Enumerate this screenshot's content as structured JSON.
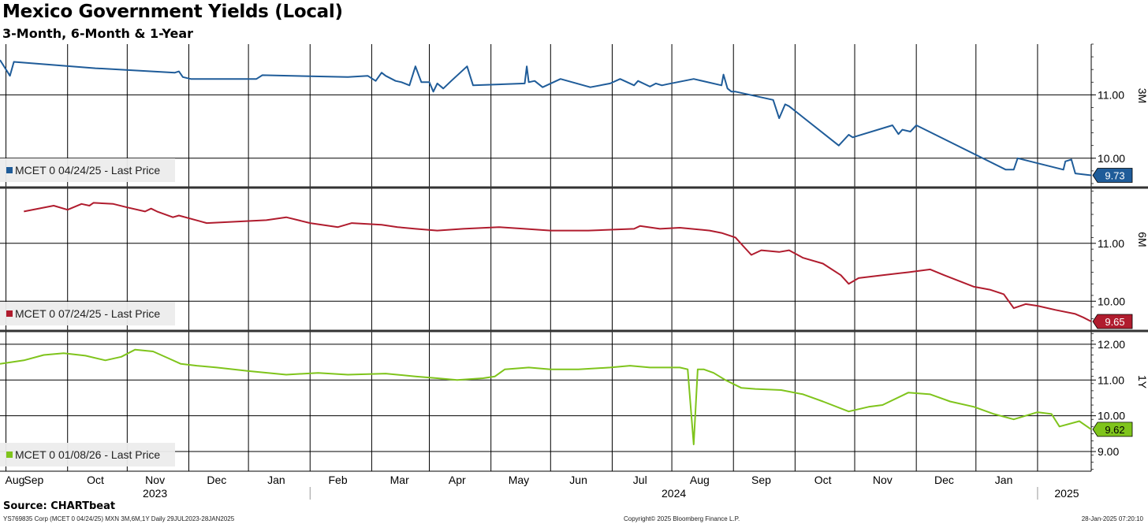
{
  "title": "Mexico Government Yields (Local)",
  "subtitle": "3-Month, 6-Month & 1-Year",
  "source": "Source: CHARTbeat",
  "footer": {
    "left": "YS769835 Corp (MCET 0 04/24/25) MXN 3M,6M,1Y  Daily 29JUL2023-28JAN2025",
    "center": "Copyright© 2025 Bloomberg Finance L.P.",
    "right": "28-Jan-2025 07:20:10"
  },
  "colors": {
    "3M": "#1f5c99",
    "6M": "#b01c2e",
    "1Y": "#7fc41c"
  },
  "chart_data": {
    "type": "line",
    "x_range": [
      "2023-07-29",
      "2025-01-28"
    ],
    "month_labels": [
      "Aug",
      "Sep",
      "Oct",
      "Nov",
      "Dec",
      "Jan",
      "Feb",
      "Mar",
      "Apr",
      "May",
      "Jun",
      "Jul",
      "Aug",
      "Sep",
      "Oct",
      "Nov",
      "Dec",
      "Jan"
    ],
    "year_labels": [
      "2023",
      "2024",
      "2025"
    ],
    "panels": [
      {
        "axis_label": "3M",
        "legend": "MCET 0 04/24/25 - Last Price",
        "last_value": "9.73",
        "ylim": [
          9.55,
          11.8
        ],
        "ticks": [
          "11.00",
          "10.00"
        ],
        "tick_values": [
          11.0,
          10.0
        ],
        "series": {
          "x": [
            "2023-07-29",
            "2023-08-01",
            "2023-08-03",
            "2023-08-05",
            "2023-09-15",
            "2023-10-25",
            "2023-10-27",
            "2023-10-29",
            "2023-11-02",
            "2023-12-05",
            "2023-12-08",
            "2024-01-20",
            "2024-01-30",
            "2024-02-03",
            "2024-02-06",
            "2024-02-08",
            "2024-02-13",
            "2024-02-16",
            "2024-02-20",
            "2024-02-23",
            "2024-02-26",
            "2024-03-01",
            "2024-03-03",
            "2024-03-05",
            "2024-03-08",
            "2024-03-12",
            "2024-03-20",
            "2024-03-23",
            "2024-04-18",
            "2024-04-19",
            "2024-04-20",
            "2024-04-23",
            "2024-04-27",
            "2024-05-06",
            "2024-05-21",
            "2024-05-31",
            "2024-06-05",
            "2024-06-12",
            "2024-06-14",
            "2024-06-20",
            "2024-06-23",
            "2024-06-26",
            "2024-06-29",
            "2024-07-12",
            "2024-07-26",
            "2024-07-27",
            "2024-07-29",
            "2024-07-31",
            "2024-08-02",
            "2024-08-21",
            "2024-08-24",
            "2024-08-27",
            "2024-08-29",
            "2024-09-23",
            "2024-09-28",
            "2024-09-30",
            "2024-10-20",
            "2024-10-23",
            "2024-10-25",
            "2024-10-29",
            "2024-11-01",
            "2024-12-16",
            "2024-12-20",
            "2024-12-22",
            "2025-01-14",
            "2025-01-15",
            "2025-01-18",
            "2025-01-20",
            "2025-01-28"
          ],
          "y": [
            11.55,
            11.4,
            11.3,
            11.52,
            11.42,
            11.35,
            11.37,
            11.28,
            11.25,
            11.25,
            11.31,
            11.28,
            11.3,
            11.22,
            11.35,
            11.3,
            11.22,
            11.2,
            11.15,
            11.45,
            11.2,
            11.2,
            11.05,
            11.18,
            11.1,
            11.22,
            11.45,
            11.15,
            11.18,
            11.45,
            11.2,
            11.22,
            11.12,
            11.25,
            11.12,
            11.18,
            11.25,
            11.15,
            11.22,
            11.13,
            11.18,
            11.15,
            11.17,
            11.25,
            11.15,
            11.32,
            11.1,
            11.05,
            11.05,
            10.92,
            10.63,
            10.85,
            10.82,
            10.2,
            10.37,
            10.33,
            10.52,
            10.38,
            10.45,
            10.42,
            10.52,
            9.82,
            9.82,
            10.0,
            9.82,
            9.95,
            9.98,
            9.76,
            9.73
          ]
        }
      },
      {
        "axis_label": "6M",
        "legend": "MCET 0 07/24/25 - Last Price",
        "last_value": "9.65",
        "ylim": [
          9.5,
          11.95
        ],
        "ticks": [
          "11.00",
          "10.00"
        ],
        "tick_values": [
          11.0,
          10.0
        ],
        "series": {
          "x": [
            "2023-08-10",
            "2023-08-25",
            "2023-09-01",
            "2023-09-08",
            "2023-09-12",
            "2023-09-14",
            "2023-09-24",
            "2023-10-01",
            "2023-10-10",
            "2023-10-13",
            "2023-10-16",
            "2023-10-24",
            "2023-10-27",
            "2023-11-10",
            "2023-12-10",
            "2023-12-20",
            "2024-01-01",
            "2024-01-15",
            "2024-01-22",
            "2024-02-06",
            "2024-02-14",
            "2024-02-23",
            "2024-03-05",
            "2024-03-18",
            "2024-04-05",
            "2024-04-18",
            "2024-05-01",
            "2024-05-20",
            "2024-06-12",
            "2024-06-15",
            "2024-06-25",
            "2024-07-05",
            "2024-07-20",
            "2024-07-26",
            "2024-08-02",
            "2024-08-06",
            "2024-08-10",
            "2024-08-15",
            "2024-08-24",
            "2024-08-29",
            "2024-09-05",
            "2024-09-15",
            "2024-09-24",
            "2024-09-28",
            "2024-10-03",
            "2024-10-15",
            "2024-10-28",
            "2024-11-08",
            "2024-11-15",
            "2024-11-30",
            "2024-12-08",
            "2024-12-15",
            "2024-12-20",
            "2024-12-26",
            "2025-01-01",
            "2025-01-10",
            "2025-01-20",
            "2025-01-24",
            "2025-01-28"
          ],
          "y": [
            11.55,
            11.65,
            11.58,
            11.68,
            11.65,
            11.7,
            11.68,
            11.62,
            11.55,
            11.6,
            11.55,
            11.45,
            11.48,
            11.35,
            11.4,
            11.45,
            11.35,
            11.28,
            11.35,
            11.32,
            11.28,
            11.25,
            11.22,
            11.25,
            11.28,
            11.25,
            11.22,
            11.22,
            11.25,
            11.3,
            11.25,
            11.27,
            11.22,
            11.18,
            11.1,
            10.95,
            10.8,
            10.88,
            10.85,
            10.88,
            10.75,
            10.65,
            10.45,
            10.3,
            10.4,
            10.45,
            10.5,
            10.55,
            10.45,
            10.25,
            10.2,
            10.12,
            9.88,
            9.95,
            9.92,
            9.85,
            9.78,
            9.72,
            9.65
          ]
        }
      },
      {
        "axis_label": "1Y",
        "legend": "MCET 0 01/08/26 - Last Price",
        "last_value": "9.62",
        "ylim": [
          8.45,
          12.35
        ],
        "ticks": [
          "12.00",
          "11.00",
          "10.00",
          "9.00"
        ],
        "tick_values": [
          12.0,
          11.0,
          10.0,
          9.0
        ],
        "series": {
          "x": [
            "2023-07-29",
            "2023-08-10",
            "2023-08-20",
            "2023-08-30",
            "2023-09-10",
            "2023-09-20",
            "2023-09-28",
            "2023-10-05",
            "2023-10-14",
            "2023-10-22",
            "2023-10-28",
            "2023-11-05",
            "2023-11-15",
            "2023-12-01",
            "2023-12-20",
            "2024-01-05",
            "2024-01-20",
            "2024-02-08",
            "2024-02-23",
            "2024-03-05",
            "2024-03-15",
            "2024-03-28",
            "2024-04-03",
            "2024-04-08",
            "2024-04-20",
            "2024-05-01",
            "2024-05-15",
            "2024-05-31",
            "2024-06-10",
            "2024-06-20",
            "2024-07-05",
            "2024-07-09",
            "2024-07-12",
            "2024-07-14",
            "2024-07-17",
            "2024-07-22",
            "2024-07-28",
            "2024-08-05",
            "2024-08-12",
            "2024-08-25",
            "2024-09-05",
            "2024-09-15",
            "2024-09-28",
            "2024-10-08",
            "2024-10-15",
            "2024-10-28",
            "2024-11-08",
            "2024-11-18",
            "2024-11-30",
            "2024-12-10",
            "2024-12-20",
            "2025-01-01",
            "2025-01-08",
            "2025-01-12",
            "2025-01-22",
            "2025-01-28"
          ],
          "y": [
            11.45,
            11.55,
            11.7,
            11.75,
            11.68,
            11.55,
            11.65,
            11.85,
            11.8,
            11.6,
            11.45,
            11.4,
            11.35,
            11.25,
            11.15,
            11.2,
            11.15,
            11.18,
            11.1,
            11.05,
            11.0,
            11.05,
            11.1,
            11.3,
            11.35,
            11.3,
            11.3,
            11.35,
            11.4,
            11.35,
            11.35,
            11.3,
            9.2,
            11.3,
            11.3,
            11.2,
            11.0,
            10.78,
            10.75,
            10.72,
            10.6,
            10.4,
            10.12,
            10.25,
            10.3,
            10.65,
            10.6,
            10.4,
            10.25,
            10.05,
            9.9,
            10.1,
            10.05,
            9.7,
            9.85,
            9.62
          ]
        }
      }
    ]
  }
}
